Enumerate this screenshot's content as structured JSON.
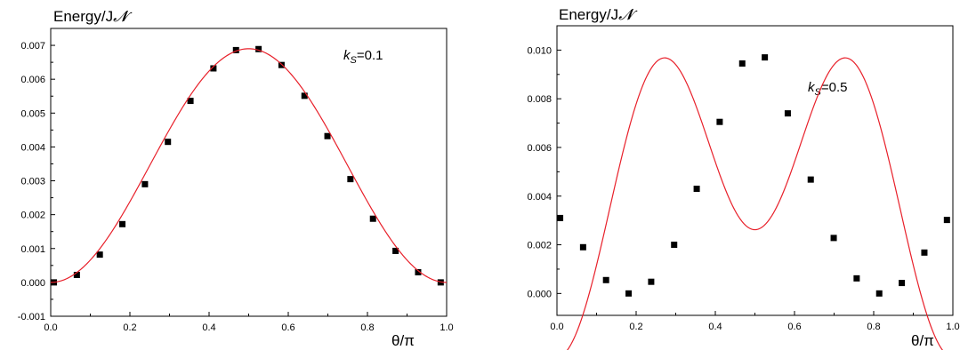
{
  "chart_data": [
    {
      "type": "scatter",
      "title": "",
      "ylabel": "Energy/J",
      "ylabel_symbol": "𝓝",
      "xlabel": "θ/π",
      "annotation": {
        "k": "k",
        "sub": "S",
        "value": "=0.1"
      },
      "xlim": [
        0,
        1.0
      ],
      "ylim": [
        -0.001,
        0.0075
      ],
      "x_ticks": [
        0.0,
        0.2,
        0.4,
        0.6,
        0.8,
        1.0
      ],
      "x_tick_labels": [
        "0.0",
        "0.2",
        "0.4",
        "0.6",
        "0.8",
        "1.0"
      ],
      "y_ticks": [
        -0.001,
        0.0,
        0.001,
        0.002,
        0.003,
        0.004,
        0.005,
        0.006,
        0.007
      ],
      "y_tick_labels": [
        "-0.001",
        "0.000",
        "0.001",
        "0.002",
        "0.003",
        "0.004",
        "0.005",
        "0.006",
        "0.007"
      ],
      "grid": false,
      "series": [
        {
          "kind": "points",
          "color": "#000000",
          "x": [
            0.008,
            0.066,
            0.124,
            0.181,
            0.238,
            0.296,
            0.353,
            0.411,
            0.468,
            0.525,
            0.583,
            0.641,
            0.699,
            0.757,
            0.814,
            0.871,
            0.928,
            0.985
          ],
          "y": [
            0.0,
            0.00022,
            0.00082,
            0.00172,
            0.0029,
            0.00415,
            0.00536,
            0.00632,
            0.00686,
            0.00689,
            0.00642,
            0.00551,
            0.00432,
            0.00305,
            0.00188,
            0.00093,
            0.0003,
            0.0
          ]
        },
        {
          "kind": "fit-line",
          "color": "#e8202a",
          "model": "0.0069*sin^2(pi*x)"
        }
      ]
    },
    {
      "type": "scatter",
      "title": "",
      "ylabel": "Energy/J",
      "ylabel_symbol": "𝓝",
      "xlabel": "θ/π",
      "annotation": {
        "k": "k",
        "sub": "S",
        "value": "=0.5"
      },
      "xlim": [
        0,
        1.0
      ],
      "ylim": [
        -0.0009,
        0.011
      ],
      "x_ticks": [
        0.0,
        0.2,
        0.4,
        0.6,
        0.8,
        1.0
      ],
      "x_tick_labels": [
        "0.0",
        "0.2",
        "0.4",
        "0.6",
        "0.8",
        "1.0"
      ],
      "y_ticks": [
        0.0,
        0.002,
        0.004,
        0.006,
        0.008,
        0.01
      ],
      "y_tick_labels": [
        "0.000",
        "0.002",
        "0.004",
        "0.006",
        "0.008",
        "0.010"
      ],
      "grid": false,
      "series": [
        {
          "kind": "points",
          "color": "#000000",
          "x": [
            0.008,
            0.066,
            0.124,
            0.181,
            0.238,
            0.296,
            0.353,
            0.411,
            0.468,
            0.525,
            0.583,
            0.641,
            0.699,
            0.757,
            0.814,
            0.871,
            0.928,
            0.985
          ],
          "y": [
            0.0031,
            0.0019,
            0.00055,
            0.0,
            0.00048,
            0.002,
            0.0043,
            0.00705,
            0.00945,
            0.0097,
            0.0074,
            0.00468,
            0.00228,
            0.00062,
            0.0,
            0.00043,
            0.00168,
            0.00302
          ]
        },
        {
          "kind": "fit-line",
          "color": "#e8202a",
          "model": "0.00475*(1-cos(4*pi*x)) - 0.00262*cos(2*pi*x)"
        }
      ]
    }
  ]
}
